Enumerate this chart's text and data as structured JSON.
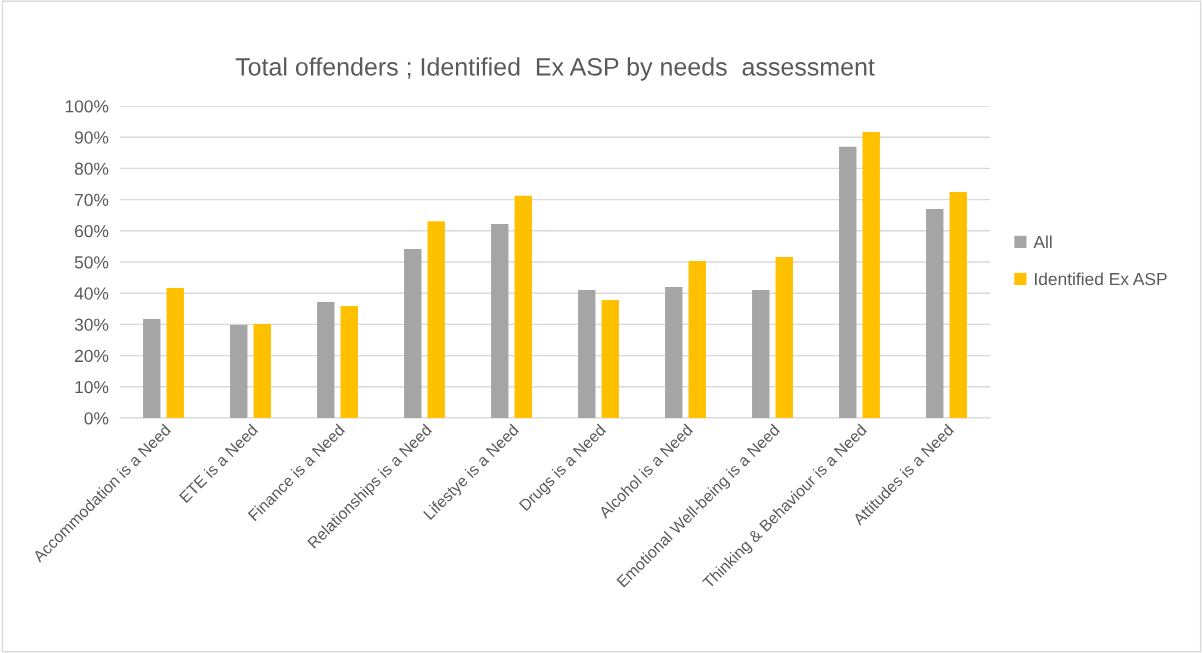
{
  "chart_data": {
    "type": "bar",
    "title": "Total offenders ; Identified  Ex ASP by needs  assessment",
    "categories": [
      "Accommodation is a Need",
      "ETE is a Need",
      "Finance is a Need",
      "Relationships is a Need",
      "Lifestye is a Need",
      "Drugs is a Need",
      "Alcohol is a Need",
      "Emotional Well-being is a Need",
      "Thinking & Behaviour is a Need",
      "Attitudes is a Need"
    ],
    "series": [
      {
        "name": "All",
        "color": "#a5a5a5",
        "values": [
          31.7,
          29.8,
          37.2,
          54.2,
          62.2,
          41.0,
          42.0,
          41.0,
          86.9,
          67.0
        ]
      },
      {
        "name": "Identified Ex ASP",
        "color": "#ffc000",
        "values": [
          41.7,
          30.1,
          35.9,
          63.1,
          71.2,
          37.8,
          50.3,
          51.6,
          91.7,
          72.4
        ]
      }
    ],
    "ylim": [
      0,
      100
    ],
    "yticks": [
      {
        "value": 0,
        "label": "0%"
      },
      {
        "value": 10,
        "label": "10%"
      },
      {
        "value": 20,
        "label": "20%"
      },
      {
        "value": 30,
        "label": "30%"
      },
      {
        "value": 40,
        "label": "40%"
      },
      {
        "value": 50,
        "label": "50%"
      },
      {
        "value": 60,
        "label": "60%"
      },
      {
        "value": 70,
        "label": "70%"
      },
      {
        "value": 80,
        "label": "80%"
      },
      {
        "value": 90,
        "label": "90%"
      },
      {
        "value": 100,
        "label": "100%"
      }
    ],
    "grid": "y",
    "legend": "right"
  }
}
